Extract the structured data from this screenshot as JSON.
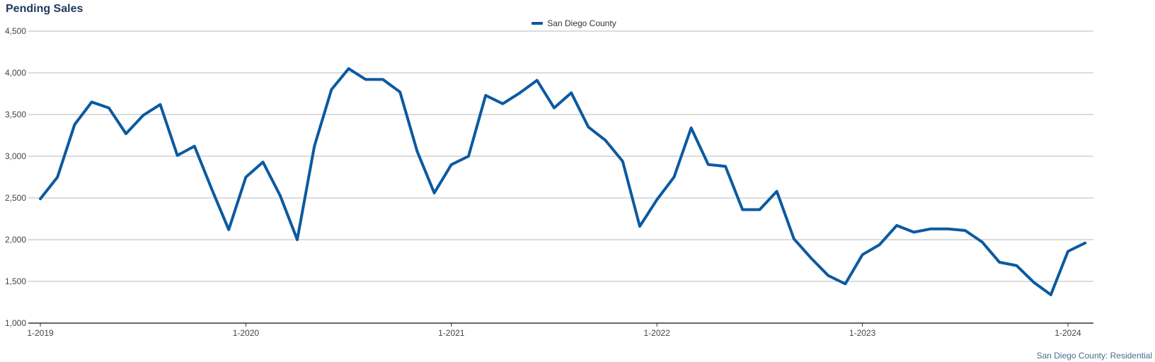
{
  "chart_data": {
    "type": "line",
    "title": "Pending Sales",
    "xlabel": "",
    "ylabel": "",
    "ylim": [
      1000,
      4500
    ],
    "yticks": [
      1000,
      1500,
      2000,
      2500,
      3000,
      3500,
      4000,
      4500
    ],
    "ytick_labels": [
      "1,000",
      "1,500",
      "2,000",
      "2,500",
      "3,000",
      "3,500",
      "4,000",
      "4,500"
    ],
    "xticks": [
      {
        "label": "1-2019",
        "index": 0
      },
      {
        "label": "1-2020",
        "index": 12
      },
      {
        "label": "1-2021",
        "index": 24
      },
      {
        "label": "1-2022",
        "index": 36
      },
      {
        "label": "1-2023",
        "index": 48
      },
      {
        "label": "1-2024",
        "index": 60
      }
    ],
    "grid": true,
    "legend_position": "top-center",
    "series": [
      {
        "name": "San Diego County",
        "color": "#0b5aa0",
        "values": [
          2490,
          2750,
          3380,
          3650,
          3580,
          3270,
          3490,
          3620,
          3010,
          3120,
          2610,
          2120,
          2750,
          2930,
          2530,
          2000,
          3120,
          3800,
          4050,
          3920,
          3920,
          3770,
          3060,
          2560,
          2900,
          3000,
          3730,
          3630,
          3760,
          3910,
          3580,
          3760,
          3350,
          3190,
          2940,
          2160,
          2480,
          2750,
          3340,
          2900,
          2880,
          2360,
          2360,
          2580,
          2010,
          1780,
          1570,
          1470,
          1820,
          1940,
          2170,
          2090,
          2130,
          2130,
          2110,
          1970,
          1730,
          1690,
          1490,
          1340,
          1860,
          1960
        ]
      }
    ]
  },
  "source_note": "San Diego County: Residential"
}
